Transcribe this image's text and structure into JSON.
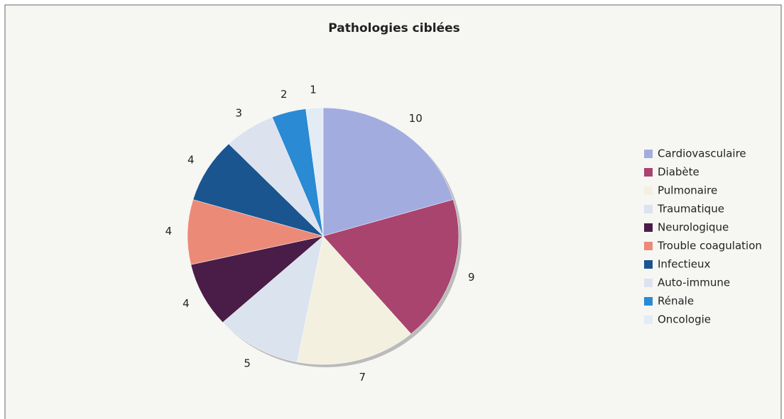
{
  "chart_data": {
    "type": "pie",
    "title": "Pathologies ciblées",
    "categories": [
      "Cardiovasculaire",
      "Diabète",
      "Pulmonaire",
      "Traumatique",
      "Neurologique",
      "Trouble coagulation",
      "Infectieux",
      "Auto-immune",
      "Rénale",
      "Oncologie"
    ],
    "values": [
      10,
      9,
      7,
      5,
      4,
      4,
      4,
      3,
      2,
      1
    ],
    "colors": [
      "#a3acdf",
      "#a8446e",
      "#f3f0e0",
      "#dbe3ef",
      "#4a1d48",
      "#ec8a78",
      "#1a5590",
      "#dde2ef",
      "#2a8ad4",
      "#e3ebf5"
    ],
    "legend": "right"
  }
}
